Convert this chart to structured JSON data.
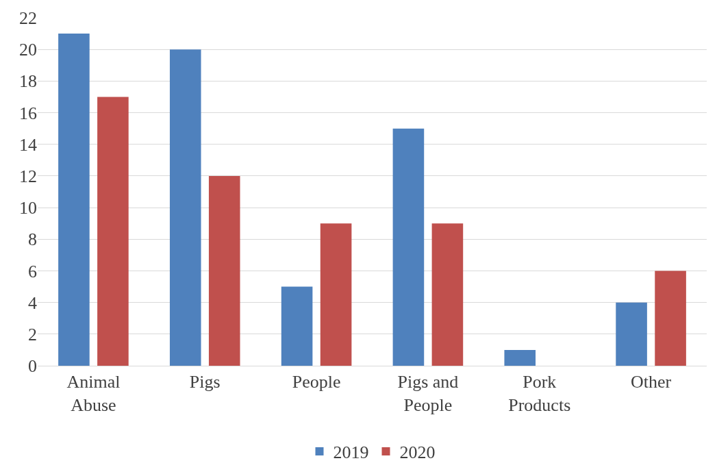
{
  "chart_data": {
    "type": "bar",
    "categories": [
      "Animal Abuse",
      "Pigs",
      "People",
      "Pigs and People",
      "Pork Products",
      "Other"
    ],
    "series": [
      {
        "name": "2019",
        "color": "#4f81bd",
        "values": [
          21,
          20,
          5,
          15,
          1,
          4
        ]
      },
      {
        "name": "2020",
        "color": "#c0504d",
        "values": [
          17,
          12,
          9,
          9,
          0,
          6
        ]
      }
    ],
    "ylim": [
      0,
      22
    ],
    "yticks": [
      0,
      2,
      4,
      6,
      8,
      10,
      12,
      14,
      16,
      18,
      20,
      22
    ],
    "grid": "y",
    "legend": "bottom"
  }
}
